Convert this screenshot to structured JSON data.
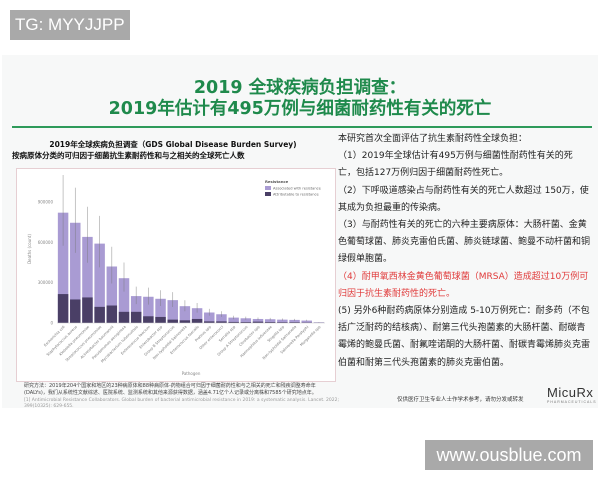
{
  "watermarks": {
    "top_left": "TG: MYYJJPP",
    "bottom_right": "www.ousblue.com"
  },
  "slide": {
    "title_line1": "2019 全球疾病负担调查：",
    "title_line2": "2019年估计有495万例与细菌耐药性有关的死亡",
    "chart_title_line1": "2019年全球疾病负担调查（GDS Global Disease Burden Survey)",
    "chart_title_line2": "按病原体分类的可归因于细菌抗生素耐药性和与之相关的全球死亡人数",
    "method_note": "研究方法：2019年204个国家和地区的23种病原体和88种病原体-药物组合可归因于细菌耐药性和与之相关的死亡和残疾调整寿命年(DALYs)，我们从系统性文献综述、医院系统、监测系统和其他来源获得数据，涵盖4.71亿个人记录或分离株和7585个研究地点年。",
    "reference": "[1] Antimicrobial Resistance Collaborators. Global burden of bacterial antimicrobial resistance in 2019: a systematic analysis. Lancet. 2022; 399(10325): 629-655.",
    "right_text": {
      "intro": "本研究首次全面评估了抗生素耐药性全球负担：",
      "p1": "（1）2019年全球估计有495万例与细菌性耐药性有关的死亡，包括127万例归因于细菌耐药性死亡。",
      "p2": "（2）下呼吸道感染占与耐药性有关的死亡人数超过 150万，使其成为负担最重的传染病。",
      "p3": "（3）与耐药性有关的死亡的六种主要病原体：大肠杆菌、金黄色葡萄球菌、肺炎克雷伯氏菌、肺炎链球菌、鲍曼不动杆菌和铜绿假单胞菌。",
      "p4": "（4）耐甲氧西林金黄色葡萄球菌（MRSA）造成超过10万例可归因于抗生素耐药性的死亡。",
      "p5": "(5) 另外6种耐药病原体分别造成 5-10万例死亡：耐多药（不包括广泛耐药的结核病）、耐第三代头孢菌素的大肠杆菌、耐碳青霉烯的鲍曼氏菌、耐氟喹诺酮的大肠杆菌、耐碳青霉烯肺炎克雷伯菌和耐第三代头孢菌素的肺炎克雷伯菌。"
    },
    "note": "仅供医疗卫生专业人士作学术参考，请勿分发或转发",
    "logo": "MicuRx",
    "logo_sub": "PHARMACEUTICALS",
    "colors": {
      "title": "#1f8a4c",
      "highlight": "#e03a3a",
      "associated": "#a99bd3",
      "attributable": "#4a3f66"
    }
  },
  "chart_data": {
    "type": "bar",
    "xlabel": "Pathogen",
    "ylabel": "Deaths (count)",
    "ylim": [
      0,
      1100000
    ],
    "yticks": [
      "0",
      "300000",
      "600000",
      "900000"
    ],
    "legend_title": "Resistance",
    "legend_position": "top-right",
    "categories": [
      "Escherichia coli",
      "Staphylococcus aureus",
      "Klebsiella pneumoniae",
      "Streptococcus pneumoniae",
      "Acinetobacter baumannii",
      "Pseudomonas aeruginosa",
      "Mycobacterium tuberculosis",
      "Enterococcus faecium",
      "Enterobacter spp",
      "Group B Streptococcus",
      "Non-typhoidal Salmonella",
      "Enterococcus faecalis",
      "Proteus spp",
      "Other enterococci",
      "Serratia spp",
      "Group A Streptococcus",
      "Citrobacter spp",
      "Haemophilus influenzae",
      "Shigella spp",
      "Non-typhoidal Salmonella",
      "Salmonella Paratyphi",
      "Morganella spp"
    ],
    "series": [
      {
        "name": "Associated with resistance",
        "values": [
          820000,
          745000,
          640000,
          590000,
          420000,
          333000,
          200000,
          195000,
          180000,
          170000,
          125000,
          110000,
          78000,
          65000,
          40000,
          35000,
          30000,
          28000,
          25000,
          23000,
          18000,
          5000
        ]
      },
      {
        "name": "Attributable to resistance",
        "values": [
          215000,
          175000,
          190000,
          120000,
          130000,
          83000,
          83000,
          50000,
          45000,
          25000,
          20000,
          30000,
          12000,
          12000,
          8000,
          7000,
          10000,
          7000,
          6000,
          6000,
          4000,
          2000
        ]
      }
    ]
  }
}
